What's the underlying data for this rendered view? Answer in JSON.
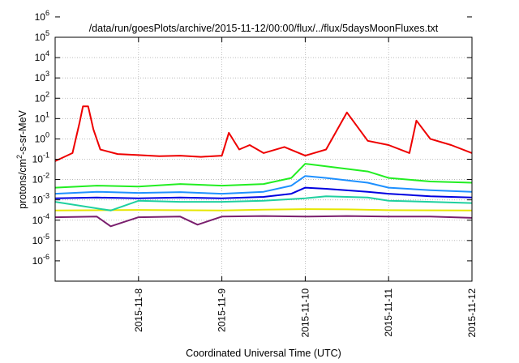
{
  "chart_data": {
    "type": "line",
    "title": "/data/run/goesPlots/archive/2015-11-12/00:00/flux/../flux/5daysMoonFluxes.txt",
    "xlabel": "Coordinated Universal Time (UTC)",
    "ylabel_parts": [
      "protons/cm",
      "2",
      "-s-sr-MeV"
    ],
    "y_scale": "log",
    "ylim": [
      1e-06,
      1000000.0
    ],
    "y_ticks": [
      {
        "base": "10",
        "exp": "-6"
      },
      {
        "base": "10",
        "exp": "-5"
      },
      {
        "base": "10",
        "exp": "-4"
      },
      {
        "base": "10",
        "exp": "-3"
      },
      {
        "base": "10",
        "exp": "-2"
      },
      {
        "base": "10",
        "exp": "-1"
      },
      {
        "base": "10",
        "exp": "0"
      },
      {
        "base": "10",
        "exp": "1"
      },
      {
        "base": "10",
        "exp": "2"
      },
      {
        "base": "10",
        "exp": "3"
      },
      {
        "base": "10",
        "exp": "4"
      },
      {
        "base": "10",
        "exp": "5"
      },
      {
        "base": "10",
        "exp": "6"
      }
    ],
    "xlim": [
      "2015-11-07T00:00",
      "2015-11-12T00:00"
    ],
    "x_tick_labels": [
      "2015-11-8",
      "2015-11-9",
      "2015-11-10",
      "2015-11-11",
      "2015-11-12"
    ],
    "x_tick_dates": [
      "2015-11-08T00:00",
      "2015-11-09T00:00",
      "2015-11-10T00:00",
      "2015-11-11T00:00",
      "2015-11-12T00:00"
    ],
    "grid": true,
    "series": [
      {
        "color": "#7a1f6e",
        "x": [
          "2015-11-07T00:00",
          "2015-11-07T12:00",
          "2015-11-07T16:00",
          "2015-11-08T00:00",
          "2015-11-08T12:00",
          "2015-11-08T17:00",
          "2015-11-09T00:00",
          "2015-11-09T12:00",
          "2015-11-10T00:00",
          "2015-11-10T12:00",
          "2015-11-11T00:00",
          "2015-11-11T12:00",
          "2015-11-12T00:00"
        ],
        "y": [
          0.0014,
          0.0015,
          0.0005,
          0.0014,
          0.0015,
          0.0006,
          0.0015,
          0.0016,
          0.0015,
          0.0016,
          0.0015,
          0.0015,
          0.0013
        ]
      },
      {
        "color": "#e6e600",
        "x": [
          "2015-11-07T00:00",
          "2015-11-08T00:00",
          "2015-11-09T00:00",
          "2015-11-09T12:00",
          "2015-11-10T00:00",
          "2015-11-10T12:00",
          "2015-11-11T00:00",
          "2015-11-12T00:00"
        ],
        "y": [
          0.003,
          0.0032,
          0.003,
          0.0033,
          0.0035,
          0.0034,
          0.0031,
          0.003
        ]
      },
      {
        "color": "#20d0a0",
        "x": [
          "2015-11-07T00:00",
          "2015-11-07T16:00",
          "2015-11-08T00:00",
          "2015-11-08T12:00",
          "2015-11-09T00:00",
          "2015-11-09T12:00",
          "2015-11-10T00:00",
          "2015-11-10T06:00",
          "2015-11-10T18:00",
          "2015-11-11T00:00",
          "2015-11-11T12:00",
          "2015-11-12T00:00"
        ],
        "y": [
          0.008,
          0.003,
          0.009,
          0.008,
          0.008,
          0.009,
          0.012,
          0.015,
          0.013,
          0.009,
          0.008,
          0.007
        ]
      },
      {
        "color": "#0000e0",
        "x": [
          "2015-11-07T00:00",
          "2015-11-07T12:00",
          "2015-11-08T00:00",
          "2015-11-08T12:00",
          "2015-11-09T00:00",
          "2015-11-09T12:00",
          "2015-11-09T20:00",
          "2015-11-10T00:00",
          "2015-11-10T06:00",
          "2015-11-10T18:00",
          "2015-11-11T00:00",
          "2015-11-11T12:00",
          "2015-11-12T00:00"
        ],
        "y": [
          0.012,
          0.013,
          0.012,
          0.013,
          0.012,
          0.014,
          0.02,
          0.04,
          0.035,
          0.025,
          0.02,
          0.015,
          0.013
        ]
      },
      {
        "color": "#1e90ff",
        "x": [
          "2015-11-07T00:00",
          "2015-11-07T12:00",
          "2015-11-08T00:00",
          "2015-11-08T12:00",
          "2015-11-09T00:00",
          "2015-11-09T12:00",
          "2015-11-09T20:00",
          "2015-11-10T00:00",
          "2015-11-10T06:00",
          "2015-11-10T18:00",
          "2015-11-11T00:00",
          "2015-11-11T12:00",
          "2015-11-12T00:00"
        ],
        "y": [
          0.02,
          0.025,
          0.022,
          0.024,
          0.02,
          0.025,
          0.05,
          0.15,
          0.12,
          0.07,
          0.04,
          0.03,
          0.025
        ]
      },
      {
        "color": "#22ee22",
        "x": [
          "2015-11-07T00:00",
          "2015-11-07T12:00",
          "2015-11-08T00:00",
          "2015-11-08T12:00",
          "2015-11-09T00:00",
          "2015-11-09T12:00",
          "2015-11-09T20:00",
          "2015-11-10T00:00",
          "2015-11-10T06:00",
          "2015-11-10T18:00",
          "2015-11-11T00:00",
          "2015-11-11T12:00",
          "2015-11-12T00:00"
        ],
        "y": [
          0.04,
          0.05,
          0.045,
          0.06,
          0.05,
          0.06,
          0.12,
          0.6,
          0.45,
          0.25,
          0.12,
          0.08,
          0.07
        ]
      },
      {
        "color": "#ee0000",
        "x": [
          "2015-11-07T00:00",
          "2015-11-07T05:00",
          "2015-11-07T07:00",
          "2015-11-07T08:00",
          "2015-11-07T09:30",
          "2015-11-07T11:00",
          "2015-11-07T13:00",
          "2015-11-07T18:00",
          "2015-11-08T00:00",
          "2015-11-08T06:00",
          "2015-11-08T12:00",
          "2015-11-08T18:00",
          "2015-11-09T00:00",
          "2015-11-09T02:00",
          "2015-11-09T05:00",
          "2015-11-09T08:00",
          "2015-11-09T12:00",
          "2015-11-09T18:00",
          "2015-11-10T00:00",
          "2015-11-10T06:00",
          "2015-11-10T12:00",
          "2015-11-10T18:00",
          "2015-11-11T00:00",
          "2015-11-11T06:00",
          "2015-11-11T08:00",
          "2015-11-11T12:00",
          "2015-11-11T18:00",
          "2015-11-12T00:00"
        ],
        "y": [
          0.8,
          2,
          60,
          400,
          400,
          30,
          3,
          1.8,
          1.6,
          1.4,
          1.5,
          1.3,
          1.5,
          20,
          3,
          5,
          2,
          4,
          1.5,
          3,
          200,
          8,
          5,
          2,
          80,
          10,
          5,
          2
        ]
      }
    ]
  }
}
